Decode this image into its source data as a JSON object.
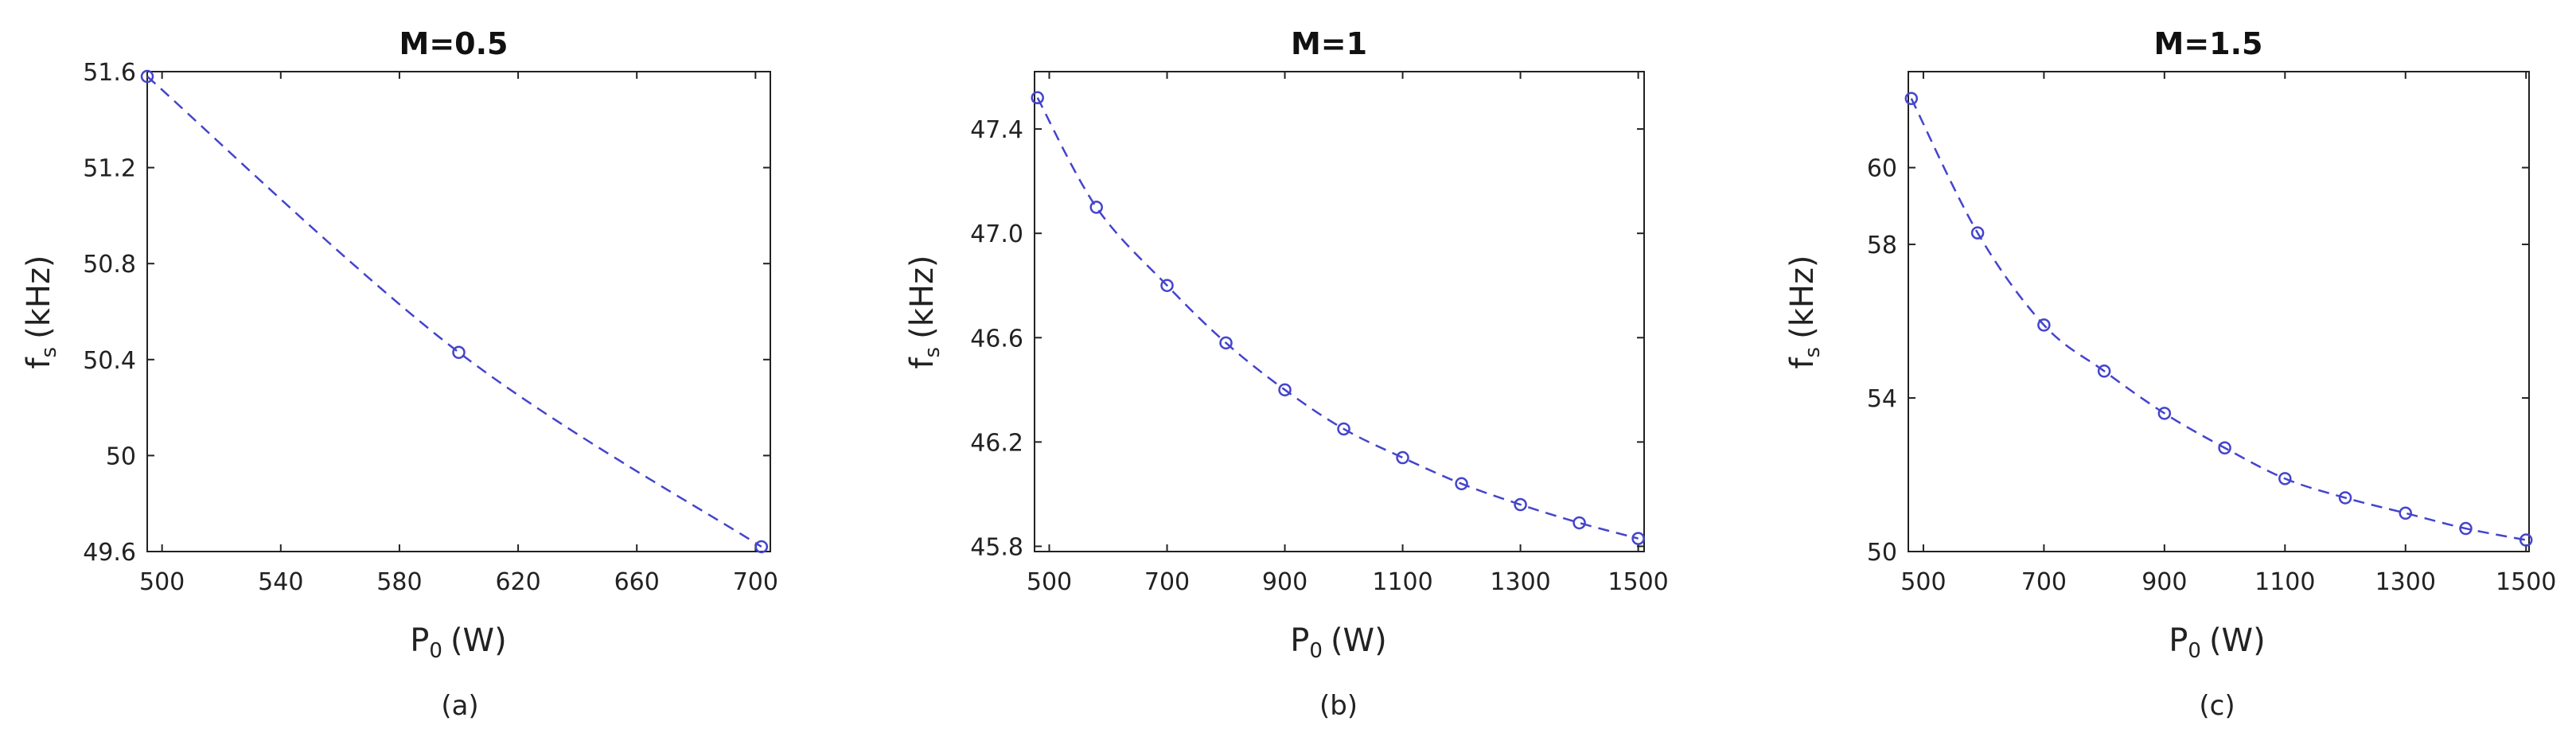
{
  "figure": {
    "series_color": "#4444cc"
  },
  "chart_data": [
    {
      "type": "line",
      "title": "M=0.5",
      "caption": "(a)",
      "xlabel": {
        "main": "P",
        "sub": "0",
        "unit": "(W)"
      },
      "ylabel": {
        "main": "f",
        "sub": "s",
        "unit": "(kHz)"
      },
      "xlim": [
        495,
        705
      ],
      "ylim": [
        49.6,
        51.6
      ],
      "xticks": [
        500,
        540,
        580,
        620,
        660,
        700
      ],
      "yticks": [
        49.6,
        50,
        50.4,
        50.8,
        51.2,
        51.6
      ],
      "ytick_labels": [
        "49.6",
        "50",
        "50.4",
        "50.8",
        "51.2",
        "51.6"
      ],
      "x": [
        495,
        600,
        702
      ],
      "y": [
        51.58,
        50.43,
        49.62
      ]
    },
    {
      "type": "line",
      "title": "M=1",
      "caption": "(b)",
      "xlabel": {
        "main": "P",
        "sub": "0",
        "unit": "(W)"
      },
      "ylabel": {
        "main": "f",
        "sub": "s",
        "unit": "(kHz)"
      },
      "xlim": [
        475,
        1510
      ],
      "ylim": [
        45.78,
        47.62
      ],
      "xticks": [
        500,
        700,
        900,
        1100,
        1300,
        1500
      ],
      "yticks": [
        45.8,
        46.2,
        46.6,
        47.0,
        47.4
      ],
      "ytick_labels": [
        "45.8",
        "46.2",
        "46.6",
        "47.0",
        "47.4"
      ],
      "x": [
        480,
        580,
        700,
        800,
        900,
        1000,
        1100,
        1200,
        1300,
        1400,
        1500
      ],
      "y": [
        47.52,
        47.1,
        46.8,
        46.58,
        46.4,
        46.25,
        46.14,
        46.04,
        45.96,
        45.89,
        45.83
      ]
    },
    {
      "type": "line",
      "title": "M=1.5",
      "caption": "(c)",
      "xlabel": {
        "main": "P",
        "sub": "0",
        "unit": "(W)"
      },
      "ylabel": {
        "main": "f",
        "sub": "s",
        "unit": "(kHz)"
      },
      "xlim": [
        475,
        1505
      ],
      "ylim": [
        50,
        62.5
      ],
      "xticks": [
        500,
        700,
        900,
        1100,
        1300,
        1500
      ],
      "yticks": [
        50,
        54,
        58,
        60
      ],
      "ytick_labels": [
        "50",
        "54",
        "58",
        "60"
      ],
      "x": [
        480,
        590,
        700,
        800,
        900,
        1000,
        1100,
        1200,
        1300,
        1400,
        1500
      ],
      "y": [
        61.8,
        58.3,
        55.9,
        54.7,
        53.6,
        52.7,
        51.9,
        51.4,
        51.0,
        50.6,
        50.3
      ]
    }
  ]
}
